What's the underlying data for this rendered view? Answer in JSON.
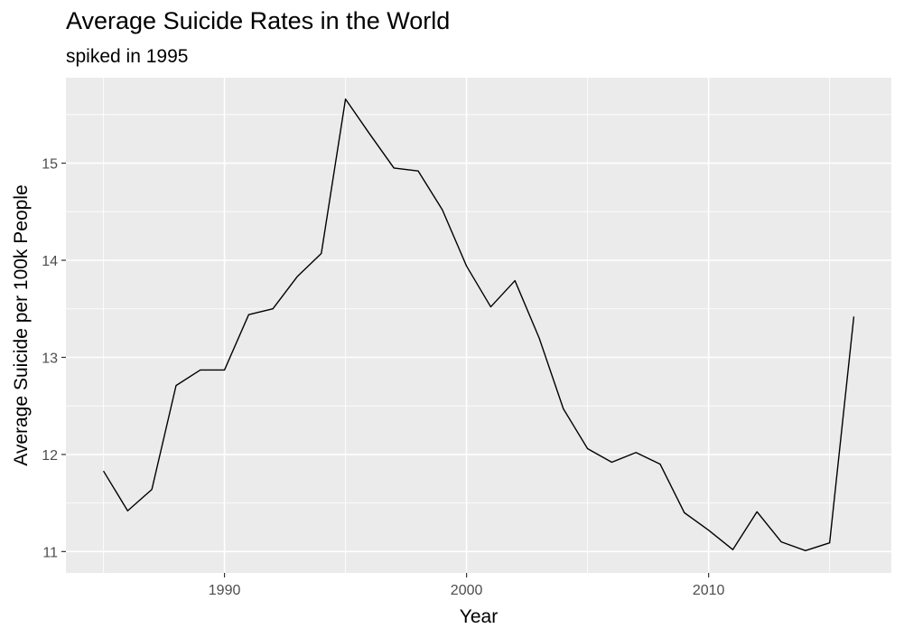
{
  "chart_data": {
    "type": "line",
    "title": "Average Suicide Rates in the World",
    "subtitle": "spiked in 1995",
    "xlabel": "Year",
    "ylabel": "Average Suicide per 100k People",
    "xlim": [
      1983.45,
      2017.55
    ],
    "ylim": [
      10.78,
      15.88
    ],
    "x_ticks": [
      1990,
      2000,
      2010
    ],
    "y_ticks": [
      11,
      12,
      13,
      14,
      15
    ],
    "grid": true,
    "background": "#EBEBEB",
    "grid_color": "#FFFFFF",
    "line_color": "#000000",
    "x": [
      1985,
      1986,
      1987,
      1988,
      1989,
      1990,
      1991,
      1992,
      1993,
      1994,
      1995,
      1996,
      1997,
      1998,
      1999,
      2000,
      2001,
      2002,
      2003,
      2004,
      2005,
      2006,
      2007,
      2008,
      2009,
      2010,
      2011,
      2012,
      2013,
      2014,
      2015,
      2016
    ],
    "values": [
      11.83,
      11.42,
      11.64,
      12.71,
      12.87,
      12.87,
      13.44,
      13.5,
      13.83,
      14.07,
      15.66,
      15.3,
      14.95,
      14.92,
      14.52,
      13.94,
      13.52,
      13.79,
      13.2,
      12.47,
      12.06,
      11.92,
      12.02,
      11.9,
      11.4,
      11.22,
      11.02,
      11.41,
      11.1,
      11.01,
      11.09,
      13.42
    ]
  }
}
